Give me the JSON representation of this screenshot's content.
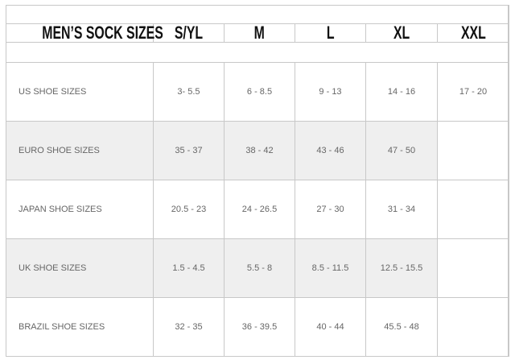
{
  "title": "MEN’S SOCK SIZES",
  "columns": [
    "S/YL",
    "M",
    "L",
    "XL",
    "XXL"
  ],
  "rows": [
    {
      "label": "US SHOE SIZES",
      "values": [
        "3- 5.5",
        "6 - 8.5",
        "9 - 13",
        "14 - 16",
        "17 - 20"
      ]
    },
    {
      "label": "EURO SHOE SIZES",
      "values": [
        "35 - 37",
        "38 - 42",
        "43 - 46",
        "47 - 50",
        ""
      ]
    },
    {
      "label": "JAPAN SHOE SIZES",
      "values": [
        "20.5 - 23",
        "24 - 26.5",
        "27 - 30",
        "31 - 34",
        ""
      ]
    },
    {
      "label": "UK SHOE SIZES",
      "values": [
        "1.5 - 4.5",
        "5.5 - 8",
        "8.5 - 11.5",
        "12.5 - 15.5",
        ""
      ]
    },
    {
      "label": "BRAZIL SHOE SIZES",
      "values": [
        "32 - 35",
        "36 - 39.5",
        "40 - 44",
        "45.5 - 48",
        ""
      ]
    }
  ]
}
